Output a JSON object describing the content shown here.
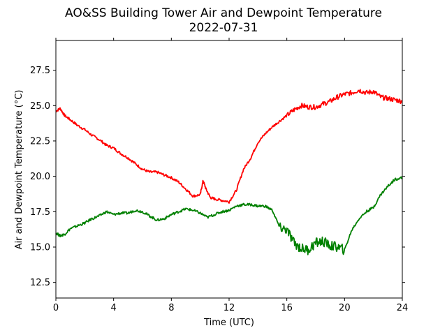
{
  "chart_data": {
    "type": "line",
    "title": "AO&SS Building Tower Air and Dewpoint Temperature",
    "subtitle": "2022-07-31",
    "xlabel": "Time (UTC)",
    "ylabel": "Air and Dewpoint Temperature (°C)",
    "xlim": [
      0,
      24
    ],
    "ylim": [
      11.4,
      29.6
    ],
    "xticks": [
      0,
      4,
      8,
      12,
      16,
      20,
      24
    ],
    "yticks": [
      12.5,
      15.0,
      17.5,
      20.0,
      22.5,
      25.0,
      27.5
    ],
    "ytick_labels": [
      "12.5",
      "15.0",
      "17.5",
      "20.0",
      "22.5",
      "25.0",
      "27.5"
    ],
    "grid": false,
    "legend": "none",
    "series": [
      {
        "color": "#ff0000",
        "x": [
          0,
          0.3,
          0.6,
          1,
          1.5,
          2,
          2.5,
          3,
          3.5,
          4,
          4.5,
          5,
          5.5,
          6,
          6.5,
          7,
          7.5,
          8,
          8.5,
          9,
          9.5,
          10,
          10.2,
          10.4,
          10.7,
          11,
          11.5,
          12,
          12.5,
          13,
          13.5,
          14,
          14.5,
          15,
          15.5,
          16,
          16.5,
          17,
          17.5,
          18,
          18.5,
          19,
          19.5,
          20,
          20.5,
          21,
          21.5,
          22,
          22.5,
          23,
          23.5,
          24
        ],
        "y": [
          24.6,
          24.8,
          24.3,
          24.0,
          23.6,
          23.3,
          22.9,
          22.6,
          22.2,
          22.0,
          21.6,
          21.3,
          20.9,
          20.5,
          20.3,
          20.3,
          20.1,
          19.9,
          19.6,
          19.1,
          18.6,
          18.7,
          19.7,
          19.1,
          18.5,
          18.4,
          18.3,
          18.2,
          19.0,
          20.5,
          21.3,
          22.4,
          23.0,
          23.5,
          23.9,
          24.3,
          24.7,
          25.0,
          24.9,
          24.9,
          25.1,
          25.3,
          25.6,
          25.8,
          25.9,
          26.1,
          25.9,
          26.0,
          25.6,
          25.5,
          25.4,
          25.3
        ],
        "values_note_free": true
      },
      {
        "color": "#008000",
        "x": [
          0,
          0.3,
          0.6,
          1,
          1.5,
          2,
          2.5,
          3,
          3.5,
          4,
          4.5,
          5,
          5.5,
          6,
          6.5,
          7,
          7.5,
          8,
          8.5,
          9,
          9.5,
          10,
          10.5,
          11,
          11.5,
          12,
          12.5,
          13,
          13.5,
          14,
          14.5,
          15,
          15.5,
          16,
          16.5,
          17,
          17.5,
          18,
          18.5,
          19,
          19.5,
          20,
          20.5,
          21,
          21.5,
          22,
          22.5,
          23,
          23.5,
          24
        ],
        "y": [
          16.0,
          15.8,
          15.9,
          16.3,
          16.5,
          16.7,
          17.0,
          17.2,
          17.5,
          17.3,
          17.4,
          17.4,
          17.6,
          17.5,
          17.2,
          16.9,
          17.0,
          17.3,
          17.5,
          17.7,
          17.6,
          17.4,
          17.1,
          17.3,
          17.5,
          17.6,
          17.9,
          18.0,
          18.0,
          17.9,
          17.9,
          17.6,
          16.4,
          16.2,
          15.3,
          14.9,
          14.8,
          15.3,
          15.4,
          15.1,
          15.0,
          14.8,
          16.2,
          17.0,
          17.5,
          17.8,
          18.7,
          19.3,
          19.8,
          19.9
        ]
      }
    ]
  }
}
